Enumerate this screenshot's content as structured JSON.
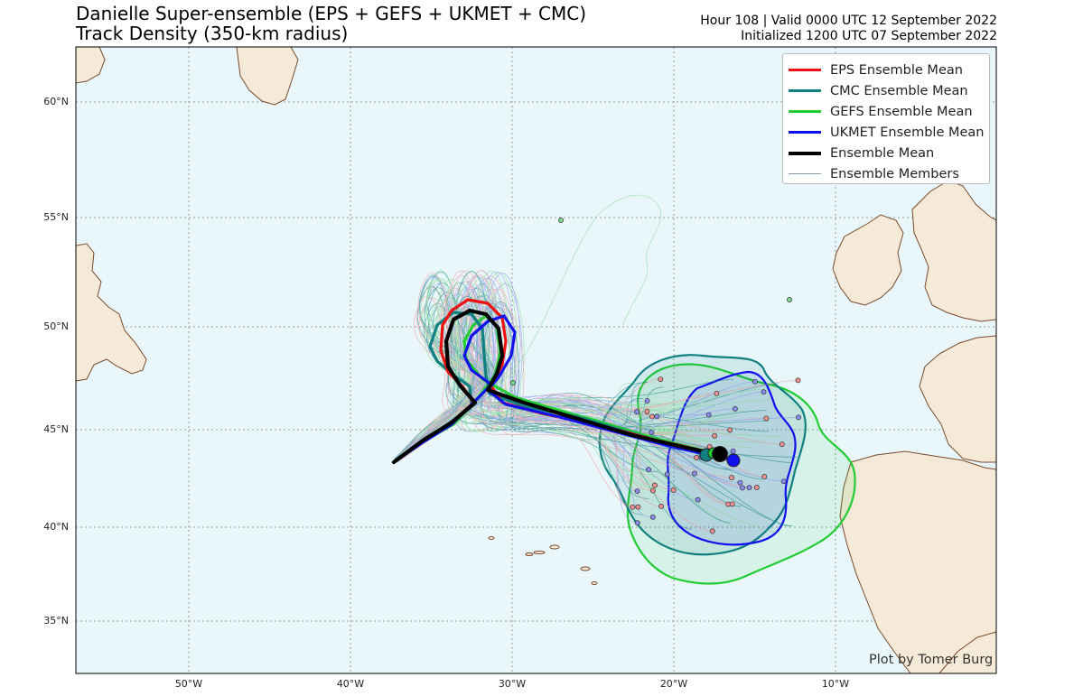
{
  "header": {
    "title_line1": "Danielle Super-ensemble (EPS + GEFS + UKMET + CMC)",
    "title_line2": "Track Density (350-km radius)",
    "valid_line": "Hour 108 | Valid 0000 UTC 12 September 2022",
    "init_line": "Initialized 1200 UTC 07 September 2022"
  },
  "legend": {
    "items": [
      {
        "label": "EPS Ensemble Mean",
        "color": "#ee1111",
        "width": 3
      },
      {
        "label": "CMC Ensemble Mean",
        "color": "#118080",
        "width": 3
      },
      {
        "label": "GEFS Ensemble Mean",
        "color": "#22cc33",
        "width": 3
      },
      {
        "label": "UKMET Ensemble Mean",
        "color": "#1111ee",
        "width": 3
      },
      {
        "label": "Ensemble Mean",
        "color": "#000000",
        "width": 4
      },
      {
        "label": "Ensemble Members",
        "color": "#8899aa",
        "width": 1
      }
    ]
  },
  "axes": {
    "lat_labels": [
      "60°N",
      "55°N",
      "50°N",
      "45°N",
      "40°N",
      "35°N"
    ],
    "lon_labels": [
      "50°W",
      "40°W",
      "30°W",
      "20°W",
      "10°W"
    ]
  },
  "credit": "Plot by Tomer Burg",
  "colors": {
    "ocean": "#e9f7fb",
    "land": "#f5ead8",
    "coast": "#7a4a2a",
    "eps": "#ee1111",
    "cmc": "#118080",
    "gefs": "#22cc33",
    "ukmet": "#1111ee",
    "mean": "#000000",
    "member_eps": "#f09090",
    "member_gefs": "#7fd88a",
    "member_ukmet": "#8c8cf0"
  }
}
